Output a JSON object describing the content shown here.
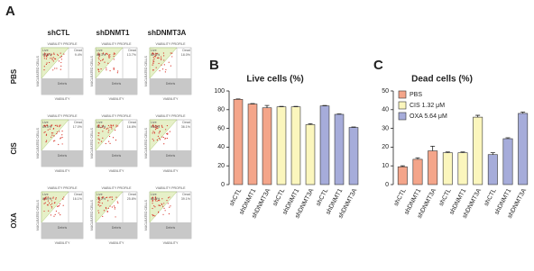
{
  "panel_a": {
    "label": "A",
    "columns": [
      "shCTL",
      "shDNMT1",
      "shDNMT3A"
    ],
    "rows": [
      "PBS",
      "CIS",
      "OXA"
    ],
    "plot_title": "VIABILITY PROFILE",
    "y_label": "NUCLEATED CELLS",
    "x_label": "VIABILITY",
    "live_label": "Live",
    "dead_label": "Dead",
    "debris_label": "Debris",
    "live": [
      [
        "90.6%",
        "86.3%",
        "82.0%"
      ],
      [
        "83.0%",
        "83.2%",
        "63.9%"
      ],
      [
        "83.9%",
        "74.2%",
        "60.9%"
      ]
    ],
    "dead": [
      [
        "9.4%",
        "13.7%",
        "18.0%"
      ],
      [
        "17.0%",
        "16.8%",
        "36.1%"
      ],
      [
        "16.1%",
        "25.8%",
        "39.1%"
      ]
    ]
  },
  "chart_data": [
    {
      "type": "bar",
      "panel": "B",
      "title": "Live cells (%)",
      "categories": [
        "shCTL",
        "shDNMT1",
        "shDNMT3A",
        "shCTL",
        "shDNMT1",
        "shDNMT3A",
        "shCTL",
        "shDNMT1",
        "shDNMT3A"
      ],
      "values": [
        91,
        86,
        82,
        83,
        83,
        64,
        84,
        75,
        61
      ],
      "errors": [
        0.5,
        0.5,
        2.5,
        0.5,
        0.5,
        1,
        0.5,
        0.5,
        0.5
      ],
      "colors": [
        "#f4a58a",
        "#f4a58a",
        "#f4a58a",
        "#fbf6bd",
        "#fbf6bd",
        "#fbf6bd",
        "#a6acda",
        "#a6acda",
        "#a6acda"
      ],
      "ylim": [
        0,
        100
      ],
      "yticks": [
        0,
        20,
        40,
        60,
        80,
        100
      ]
    },
    {
      "type": "bar",
      "panel": "C",
      "title": "Dead cells (%)",
      "categories": [
        "shCTL",
        "shDNMT1",
        "shDNMT3A",
        "shCTL",
        "shDNMT1",
        "shDNMT3A",
        "shCTL",
        "shDNMT1",
        "shDNMT3A"
      ],
      "series": [
        {
          "name": "PBS",
          "color": "#f4a58a",
          "values": [
            9.5,
            13.5,
            18,
            null,
            null,
            null,
            null,
            null,
            null
          ],
          "errors": [
            0.5,
            0.8,
            2.5,
            null,
            null,
            null,
            null,
            null,
            null
          ]
        },
        {
          "name": "CIS 1.32 μM",
          "color": "#fbf6bd",
          "values": [
            null,
            null,
            null,
            17,
            17,
            36,
            null,
            null,
            null
          ],
          "errors": [
            null,
            null,
            null,
            0.4,
            0.4,
            1,
            null,
            null,
            null
          ]
        },
        {
          "name": "OXA 5.64 μM",
          "color": "#a6acda",
          "values": [
            null,
            null,
            null,
            null,
            null,
            null,
            16,
            24.5,
            38
          ],
          "errors": [
            null,
            null,
            null,
            null,
            null,
            null,
            1,
            0.5,
            0.7
          ]
        }
      ],
      "ylim": [
        0,
        50
      ],
      "yticks": [
        0,
        10,
        20,
        30,
        40,
        50
      ],
      "legend": "upper left"
    }
  ]
}
